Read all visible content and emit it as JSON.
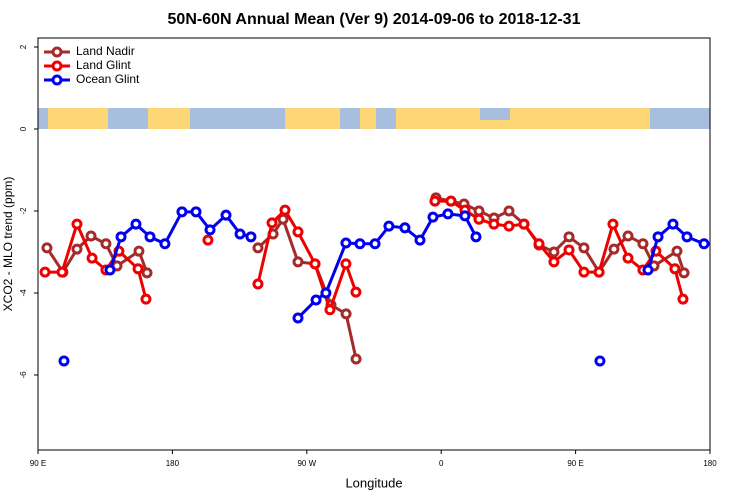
{
  "chart_data": {
    "type": "line",
    "title": "50N-60N Annual Mean (Ver 9)   2014-09-06 to 2018-12-31",
    "xlabel": "Longitude",
    "ylabel": "XCO2 - MLO trend (ppm)",
    "xlim": [
      90,
      540
    ],
    "ylim": [
      2.22,
      -7.83
    ],
    "xticks": [
      {
        "value": 90,
        "label": "90 E"
      },
      180,
      {
        "value": 270,
        "label": "90 W"
      },
      0,
      {
        "value": 450,
        "label": "90 E"
      },
      {
        "value": 540,
        "label": "180"
      }
    ],
    "yticks": [
      2,
      0,
      -2,
      -4,
      -6
    ],
    "legend": "upper left",
    "series": [
      {
        "name": "Land Nadir",
        "color": "#a52a2a",
        "x": [
          96,
          106.7,
          116.1,
          125.5,
          135.5,
          142.9,
          157.6,
          163,
          null,
          237.3,
          247.4,
          254.1,
          264.1,
          275.5,
          286.2,
          296.3,
          303,
          null,
          356.5,
          366.6,
          375.3,
          385.3,
          395.4,
          405.4,
          415.5,
          425.5,
          435.5,
          445.6,
          455.6,
          465.7,
          475.7,
          485.1,
          495.1,
          502.5,
          517.9,
          522.6
        ],
        "values": [
          -2.9,
          -3.49,
          -2.93,
          -2.61,
          -2.8,
          -3.34,
          -2.98,
          -3.51,
          null,
          -2.9,
          -2.56,
          -2.2,
          -3.24,
          -3.29,
          -4.29,
          -4.51,
          -5.61,
          null,
          -1.68,
          -1.76,
          -1.83,
          -2.0,
          -2.17,
          -2.0,
          -2.32,
          -2.83,
          -3.0,
          -2.63,
          -2.9,
          -3.49,
          -2.93,
          -2.61,
          -2.8,
          -3.34,
          -2.98,
          -3.51
        ]
      },
      {
        "name": "Land Glint",
        "color": "#ee0000",
        "x": [
          94.7,
          106.1,
          116.1,
          126.2,
          135.5,
          144.2,
          157,
          162.3,
          null,
          203.8,
          null,
          237.3,
          246.7,
          255.4,
          264.1,
          275.5,
          285.5,
          296.2,
          302.9,
          null,
          355.8,
          366.5,
          375.9,
          385.3,
          395.3,
          405.4,
          415.4,
          425.5,
          435.5,
          445.6,
          455.6,
          465.7,
          475,
          485.1,
          495.1,
          503.8,
          516.5,
          521.9
        ],
        "values": [
          -3.49,
          -3.49,
          -2.32,
          -3.15,
          -3.44,
          -2.98,
          -3.41,
          -4.15,
          null,
          -2.71,
          null,
          -3.78,
          -2.29,
          -1.98,
          -2.51,
          -3.29,
          -4.41,
          -3.29,
          -3.98,
          null,
          -1.76,
          -1.76,
          -1.98,
          -2.2,
          -2.32,
          -2.37,
          -2.32,
          -2.8,
          -3.24,
          -2.95,
          -3.49,
          -3.49,
          -2.32,
          -3.15,
          -3.44,
          -2.98,
          -3.41,
          -4.15
        ]
      },
      {
        "name": "Ocean Glint",
        "color": "#0000ee",
        "x": [
          107.4,
          null,
          138.2,
          145.6,
          155.6,
          165,
          175,
          186.4,
          195.8,
          205.2,
          215.9,
          225.3,
          232.6,
          null,
          264.1,
          276.2,
          282.8,
          296.2,
          305.6,
          315.7,
          325,
          335.7,
          345.8,
          354.5,
          364.5,
          375.9,
          383.3,
          null,
          466.3,
          null,
          498.5,
          505.2,
          515.2,
          524.6,
          536
        ],
        "values": [
          -5.66,
          null,
          -3.44,
          -2.63,
          -2.32,
          -2.63,
          -2.8,
          -2.02,
          -2.02,
          -2.46,
          -2.1,
          -2.56,
          -2.63,
          null,
          -4.61,
          -4.17,
          -4.0,
          -2.78,
          -2.8,
          -2.8,
          -2.37,
          -2.41,
          -2.71,
          -2.15,
          -2.07,
          -2.12,
          -2.63,
          null,
          -5.66,
          null,
          -3.44,
          -2.63,
          -2.32,
          -2.63,
          -2.8
        ]
      }
    ]
  }
}
